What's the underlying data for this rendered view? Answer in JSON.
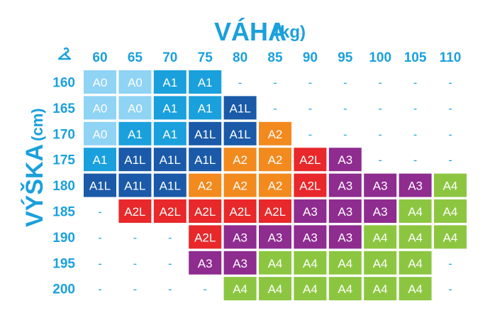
{
  "title": {
    "main": "VÁHA",
    "unit": "(kg)"
  },
  "ylabel": {
    "main": "VÝŠKA",
    "unit": "(cm)"
  },
  "corner_icon": "hanger-icon",
  "colors": {
    "A0": "#8fd3f5",
    "A1": "#1aa0dc",
    "A1L": "#1a5aa8",
    "A2": "#f28a1e",
    "A2L": "#e8282a",
    "A3": "#8e2c8f",
    "A4": "#8cc641",
    "axis_text": "#1aa0dc",
    "empty_dash": "#1aa0dc"
  },
  "chart_data": {
    "type": "table",
    "title": "VÁHA (kg)",
    "xlabel": "VÁHA (kg)",
    "ylabel": "VÝŠKA (cm)",
    "weights": [
      "60",
      "65",
      "70",
      "75",
      "80",
      "85",
      "90",
      "95",
      "100",
      "105",
      "110"
    ],
    "heights": [
      "160",
      "165",
      "170",
      "175",
      "180",
      "185",
      "190",
      "195",
      "200"
    ],
    "cells": [
      [
        "A0",
        "A0",
        "A1",
        "A1",
        "-",
        "-",
        "-",
        "-",
        "-",
        "-",
        "-"
      ],
      [
        "A0",
        "A0",
        "A1",
        "A1",
        "A1L",
        "-",
        "-",
        "-",
        "-",
        "-",
        "-"
      ],
      [
        "A0",
        "A1",
        "A1",
        "A1L",
        "A1L",
        "A2",
        "-",
        "-",
        "-",
        "-",
        "-"
      ],
      [
        "A1",
        "A1L",
        "A1L",
        "A1L",
        "A2",
        "A2",
        "A2L",
        "A3",
        "-",
        "-",
        "-"
      ],
      [
        "A1L",
        "A1L",
        "A1L",
        "A2",
        "A2",
        "A2",
        "A2L",
        "A3",
        "A3",
        "A3",
        "A4"
      ],
      [
        "-",
        "A2L",
        "A2L",
        "A2L",
        "A2L",
        "A2L",
        "A3",
        "A3",
        "A3",
        "A4",
        "A4"
      ],
      [
        "-",
        "-",
        "-",
        "A2L",
        "A3",
        "A3",
        "A3",
        "A3",
        "A4",
        "A4",
        "A4"
      ],
      [
        "-",
        "-",
        "-",
        "A3",
        "A3",
        "A4",
        "A4",
        "A4",
        "A4",
        "A4",
        "-"
      ],
      [
        "-",
        "-",
        "-",
        "-",
        "A4",
        "A4",
        "A4",
        "A4",
        "A4",
        "A4",
        "-"
      ]
    ]
  }
}
